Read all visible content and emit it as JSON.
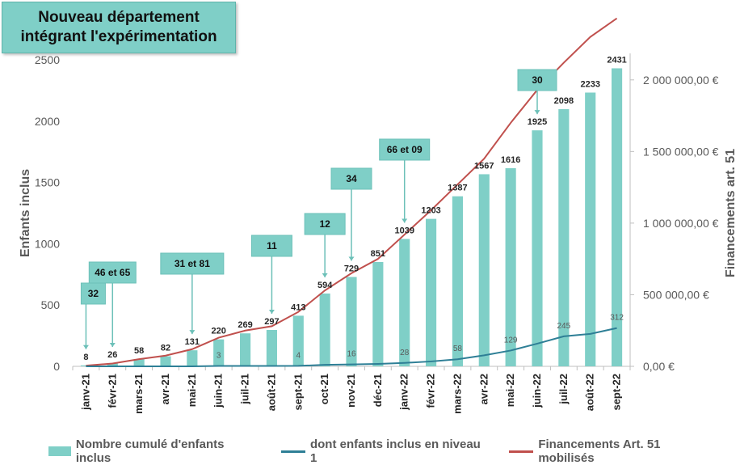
{
  "title": "Nouveau département intégrant l'expérimentation",
  "chart_data": {
    "type": "bar",
    "categories": [
      "janv-21",
      "févr-21",
      "mars-21",
      "avr-21",
      "mai-21",
      "juin-21",
      "juil-21",
      "août-21",
      "sept-21",
      "oct-21",
      "nov-21",
      "déc-21",
      "janv-22",
      "févr-22",
      "mars-22",
      "avr-22",
      "mai-22",
      "juin-22",
      "juil-22",
      "août-22",
      "sept-22"
    ],
    "series": [
      {
        "name": "Nombre cumulé d'enfants inclus",
        "kind": "bar",
        "axis": "left",
        "color": "#7fcfc7",
        "values": [
          8,
          26,
          58,
          82,
          131,
          220,
          269,
          297,
          413,
          594,
          729,
          851,
          1039,
          1203,
          1387,
          1567,
          1616,
          1925,
          2098,
          2233,
          2431
        ],
        "labels": [
          "8",
          "26",
          "58",
          "82",
          "131",
          "220",
          "269",
          "297",
          "413",
          "594",
          "729",
          "851",
          "1039",
          "1203",
          "1387",
          "1567",
          "1616",
          "1925",
          "2098",
          "2233",
          "2431"
        ]
      },
      {
        "name": "dont enfants inclus en niveau 1",
        "kind": "line",
        "axis": "left",
        "color": "#2e7f96",
        "values": [
          0,
          0,
          0,
          0,
          0,
          3,
          3,
          3,
          4,
          12,
          16,
          20,
          28,
          40,
          58,
          90,
          129,
          185,
          245,
          265,
          312
        ],
        "labels": [
          {
            "i": 5,
            "text": "3"
          },
          {
            "i": 8,
            "text": "4"
          },
          {
            "i": 10,
            "text": "16"
          },
          {
            "i": 12,
            "text": "28"
          },
          {
            "i": 14,
            "text": "58"
          },
          {
            "i": 16,
            "text": "129"
          },
          {
            "i": 18,
            "text": "245"
          },
          {
            "i": 20,
            "text": "312"
          }
        ]
      },
      {
        "name": "Financements Art. 51 mobilisés",
        "kind": "line",
        "axis": "right",
        "color": "#c0504d",
        "values": [
          5000,
          20000,
          50000,
          75000,
          120000,
          200000,
          250000,
          280000,
          380000,
          530000,
          650000,
          750000,
          920000,
          1090000,
          1270000,
          1450000,
          1700000,
          1930000,
          2120000,
          2300000,
          2430000
        ]
      }
    ],
    "ylabel": "Enfants inclus",
    "y2label": "Financements art. 51",
    "ylim": [
      0,
      2500
    ],
    "yticks": [
      "0",
      "500",
      "1000",
      "1500",
      "2000",
      "2500"
    ],
    "y2lim": [
      0,
      2140000
    ],
    "y2ticks": [
      {
        "value": 0,
        "label": "0,00 €"
      },
      {
        "value": 500000,
        "label": "500 000,00 €"
      },
      {
        "value": 1000000,
        "label": "1 000 000,00 €"
      },
      {
        "value": 1500000,
        "label": "1 500 000,00 €"
      },
      {
        "value": 2000000,
        "label": "2 000 000,00 €"
      }
    ],
    "annotations": [
      {
        "i": 0,
        "text": "32"
      },
      {
        "i": 1,
        "text": "46 et 65"
      },
      {
        "i": 4,
        "text": "31 et 81"
      },
      {
        "i": 7,
        "text": "11"
      },
      {
        "i": 9,
        "text": "12"
      },
      {
        "i": 10,
        "text": "34"
      },
      {
        "i": 12,
        "text": "66 et 09"
      },
      {
        "i": 17,
        "text": "30"
      }
    ],
    "legend_position": "bottom"
  },
  "legend": {
    "bar": "Nombre cumulé d'enfants inclus",
    "n1": "dont enfants inclus en niveau 1",
    "fin": "Financements Art. 51 mobilisés"
  }
}
